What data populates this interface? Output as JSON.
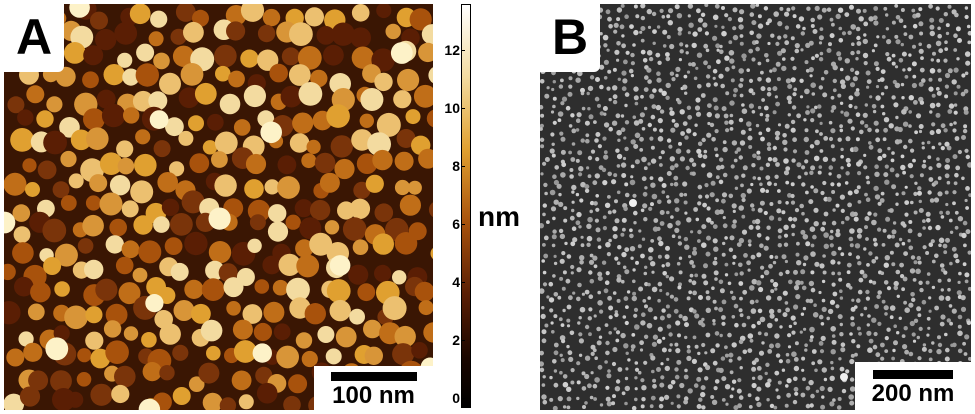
{
  "panels": {
    "a": {
      "letter": "A",
      "scalebar": "100 nm"
    },
    "b": {
      "letter": "B",
      "scalebar": "200 nm"
    }
  },
  "colorbar": {
    "unit": "nm",
    "ticks": [
      "12",
      "10",
      "8",
      "6",
      "4",
      "2",
      "0"
    ],
    "colors": [
      "#ffffff",
      "#f3dba0",
      "#e0a030",
      "#a8520c",
      "#5a1e04",
      "#000000"
    ]
  }
}
